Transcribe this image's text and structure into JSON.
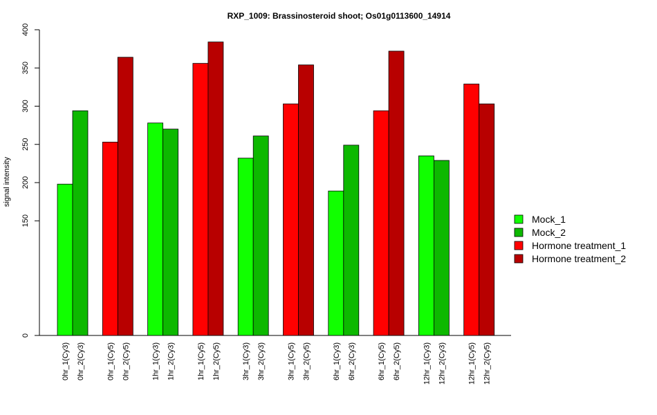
{
  "chart_data": {
    "type": "bar",
    "title": "RXP_1009: Brassinosteroid shoot; Os01g0113600_14914",
    "ylabel": "signal intensity",
    "xlabel": "",
    "ylim": [
      0,
      400
    ],
    "yticks": [
      0,
      150,
      200,
      250,
      300,
      350,
      400
    ],
    "legend_position": "right",
    "series": [
      {
        "name": "Mock_1",
        "color": "#11ff00"
      },
      {
        "name": "Mock_2",
        "color": "#0db800"
      },
      {
        "name": "Hormone treatment_1",
        "color": "#ff0000"
      },
      {
        "name": "Hormone treatment_2",
        "color": "#b80000"
      }
    ],
    "groups": [
      {
        "bars": [
          {
            "label": "0hr_1(Cy3)",
            "value": 198,
            "series": 0
          },
          {
            "label": "0hr_2(Cy3)",
            "value": 294,
            "series": 1
          }
        ]
      },
      {
        "bars": [
          {
            "label": "0hr_1(Cy5)",
            "value": 253,
            "series": 2
          },
          {
            "label": "0hr_2(Cy5)",
            "value": 364,
            "series": 3
          }
        ]
      },
      {
        "bars": [
          {
            "label": "1hr_1(Cy3)",
            "value": 278,
            "series": 0
          },
          {
            "label": "1hr_2(Cy3)",
            "value": 270,
            "series": 1
          }
        ]
      },
      {
        "bars": [
          {
            "label": "1hr_1(Cy5)",
            "value": 356,
            "series": 2
          },
          {
            "label": "1hr_2(Cy5)",
            "value": 384,
            "series": 3
          }
        ]
      },
      {
        "bars": [
          {
            "label": "3hr_1(Cy3)",
            "value": 232,
            "series": 0
          },
          {
            "label": "3hr_2(Cy3)",
            "value": 261,
            "series": 1
          }
        ]
      },
      {
        "bars": [
          {
            "label": "3hr_1(Cy5)",
            "value": 303,
            "series": 2
          },
          {
            "label": "3hr_2(Cy5)",
            "value": 354,
            "series": 3
          }
        ]
      },
      {
        "bars": [
          {
            "label": "6hr_1(Cy3)",
            "value": 189,
            "series": 0
          },
          {
            "label": "6hr_2(Cy3)",
            "value": 249,
            "series": 1
          }
        ]
      },
      {
        "bars": [
          {
            "label": "6hr_1(Cy5)",
            "value": 294,
            "series": 2
          },
          {
            "label": "6hr_2(Cy5)",
            "value": 372,
            "series": 3
          }
        ]
      },
      {
        "bars": [
          {
            "label": "12hr_1(Cy3)",
            "value": 235,
            "series": 0
          },
          {
            "label": "12hr_2(Cy3)",
            "value": 229,
            "series": 1
          }
        ]
      },
      {
        "bars": [
          {
            "label": "12hr_1(Cy5)",
            "value": 329,
            "series": 2
          },
          {
            "label": "12hr_2(Cy5)",
            "value": 303,
            "series": 3
          }
        ]
      }
    ]
  }
}
